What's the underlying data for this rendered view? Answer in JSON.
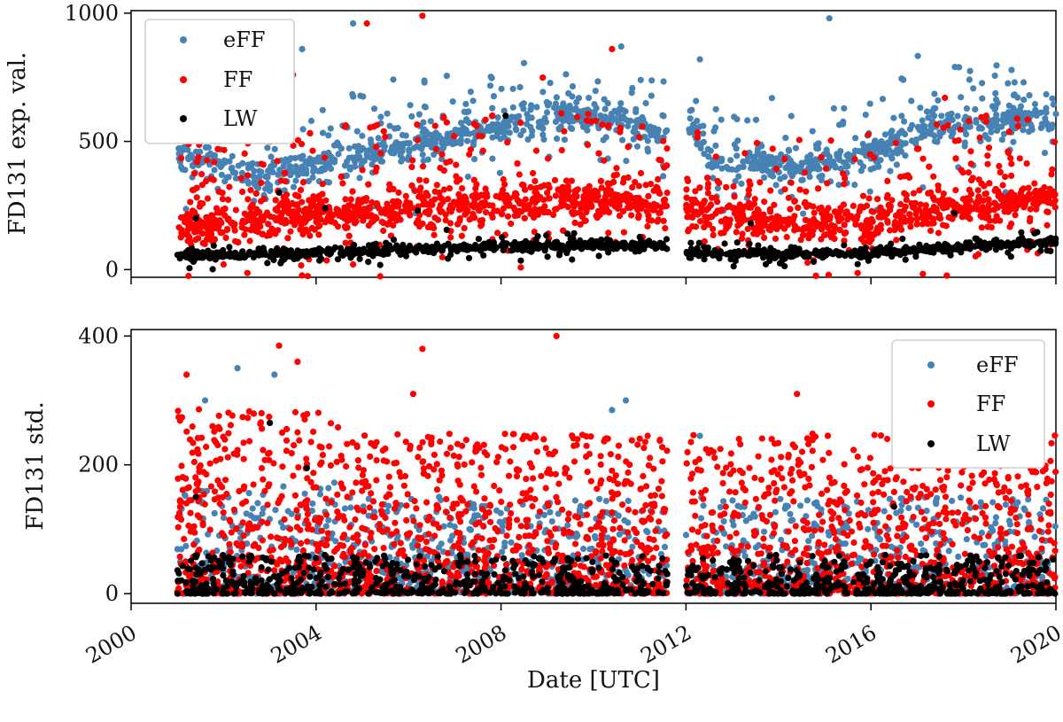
{
  "figure": {
    "xlabel": "Date [UTC]",
    "x_ticks": [
      2000,
      2004,
      2008,
      2012,
      2016,
      2020
    ],
    "xlim": [
      2000,
      2020
    ]
  },
  "colors": {
    "eFF": "#4682b4",
    "FF": "#ff0000",
    "LW": "#000000"
  },
  "chart_data": [
    {
      "type": "scatter",
      "title": "",
      "ylabel": "FD131 exp. val.",
      "xlabel": "",
      "ylim": [
        -30,
        1010
      ],
      "y_ticks": [
        0,
        500,
        1000
      ],
      "legend_position": "top-left",
      "x_range": [
        2001.0,
        2020.0
      ],
      "data_gap": [
        2011.6,
        2012.0
      ],
      "series": [
        {
          "name": "eFF",
          "trend": {
            "x": [
              2001.0,
              2002.5,
              2004.5,
              2006.5,
              2008.0,
              2009.5,
              2010.5,
              2011.6,
              2012.0,
              2012.5,
              2013.5,
              2014.5,
              2015.5,
              2016.5,
              2017.5,
              2018.5,
              2020.0
            ],
            "y": [
              440,
              360,
              420,
              500,
              560,
              600,
              590,
              520,
              600,
              430,
              420,
              400,
              430,
              480,
              560,
              580,
              600
            ]
          },
          "spread": 60,
          "outliers": [
            [
              2002.3,
              840
            ],
            [
              2003.7,
              860
            ],
            [
              2004.8,
              960
            ],
            [
              2010.6,
              870
            ],
            [
              2012.3,
              820
            ],
            [
              2015.1,
              980
            ],
            [
              2016.7,
              740
            ],
            [
              2019.3,
              730
            ]
          ]
        },
        {
          "name": "FF",
          "trend": {
            "x": [
              2001.0,
              2003.0,
              2005.0,
              2007.0,
              2009.0,
              2010.5,
              2011.6,
              2012.0,
              2013.0,
              2014.5,
              2016.0,
              2017.5,
              2019.0,
              2020.0
            ],
            "y": [
              170,
              200,
              220,
              250,
              270,
              270,
              250,
              230,
              200,
              180,
              190,
              240,
              260,
              270
            ]
          },
          "spread": 70,
          "outliers": [
            [
              2002.9,
              840
            ],
            [
              2005.1,
              960
            ],
            [
              2006.3,
              990
            ],
            [
              2003.5,
              760
            ],
            [
              2010.4,
              860
            ],
            [
              2017.6,
              670
            ],
            [
              2004.8,
              20
            ],
            [
              2002.0,
              20
            ]
          ]
        },
        {
          "name": "LW",
          "trend": {
            "x": [
              2001.0,
              2004.0,
              2007.0,
              2010.0,
              2011.6,
              2012.0,
              2014.0,
              2016.0,
              2018.0,
              2020.0
            ],
            "y": [
              55,
              65,
              85,
              95,
              90,
              70,
              60,
              65,
              90,
              110
            ]
          },
          "spread": 15,
          "outliers": [
            [
              2003.2,
              300
            ],
            [
              2004.2,
              240
            ],
            [
              2008.1,
              600
            ],
            [
              2001.4,
              200
            ],
            [
              2017.8,
              220
            ],
            [
              2006.2,
              230
            ],
            [
              2013.4,
              180
            ]
          ]
        }
      ]
    },
    {
      "type": "scatter",
      "title": "",
      "ylabel": "FD131 std.",
      "xlabel": "Date [UTC]",
      "ylim": [
        -15,
        410
      ],
      "y_ticks": [
        0,
        200,
        400
      ],
      "legend_position": "top-right",
      "x_range": [
        2001.0,
        2020.0
      ],
      "data_gap": [
        2011.6,
        2012.0
      ],
      "series": [
        {
          "name": "eFF",
          "typical_range": [
            0,
            150
          ],
          "outliers": [
            [
              2002.3,
              350
            ],
            [
              2003.1,
              340
            ],
            [
              2001.6,
              300
            ],
            [
              2010.7,
              300
            ],
            [
              2010.4,
              285
            ],
            [
              2012.3,
              245
            ]
          ]
        },
        {
          "name": "FF",
          "typical_range": [
            0,
            250
          ],
          "outliers": [
            [
              2003.2,
              385
            ],
            [
              2009.2,
              400
            ],
            [
              2006.3,
              380
            ],
            [
              2001.2,
              340
            ],
            [
              2003.6,
              360
            ],
            [
              2014.4,
              310
            ],
            [
              2006.1,
              310
            ]
          ]
        },
        {
          "name": "LW",
          "typical_range": [
            0,
            60
          ],
          "outliers": [
            [
              2003.0,
              265
            ],
            [
              2003.8,
              195
            ],
            [
              2016.5,
              135
            ],
            [
              2001.4,
              150
            ]
          ]
        }
      ]
    }
  ]
}
